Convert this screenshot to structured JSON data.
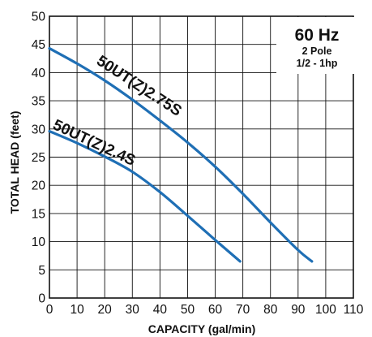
{
  "chart_data": {
    "type": "line",
    "xlabel": "CAPACITY (gal/min)",
    "ylabel": "TOTAL HEAD (feet)",
    "xlim": [
      0,
      110
    ],
    "ylim": [
      0,
      50
    ],
    "xticks": [
      "0",
      "10",
      "20",
      "30",
      "40",
      "50",
      "60",
      "70",
      "80",
      "90",
      "100",
      "110"
    ],
    "yticks": [
      "0",
      "5",
      "10",
      "15",
      "20",
      "25",
      "30",
      "35",
      "40",
      "45",
      "50"
    ],
    "grid": true,
    "annotation": {
      "frequency": "60 Hz",
      "poles": "2 Pole",
      "power": "1/2 - 1hp"
    },
    "series": [
      {
        "name": "50UT(Z)2.75S",
        "color": "#1f6fb5",
        "x": [
          0,
          10,
          20,
          30,
          40,
          50,
          60,
          70,
          80,
          90,
          95
        ],
        "y": [
          44.3,
          41.6,
          38.6,
          35.2,
          31.5,
          27.6,
          23.3,
          18.5,
          13.4,
          8.5,
          6.5
        ]
      },
      {
        "name": "50UT(Z)2.4S",
        "color": "#1f6fb5",
        "x": [
          0,
          10,
          20,
          30,
          40,
          50,
          60,
          69
        ],
        "y": [
          29.6,
          27.5,
          25.1,
          22.4,
          18.8,
          14.6,
          10.3,
          6.5
        ]
      }
    ]
  }
}
